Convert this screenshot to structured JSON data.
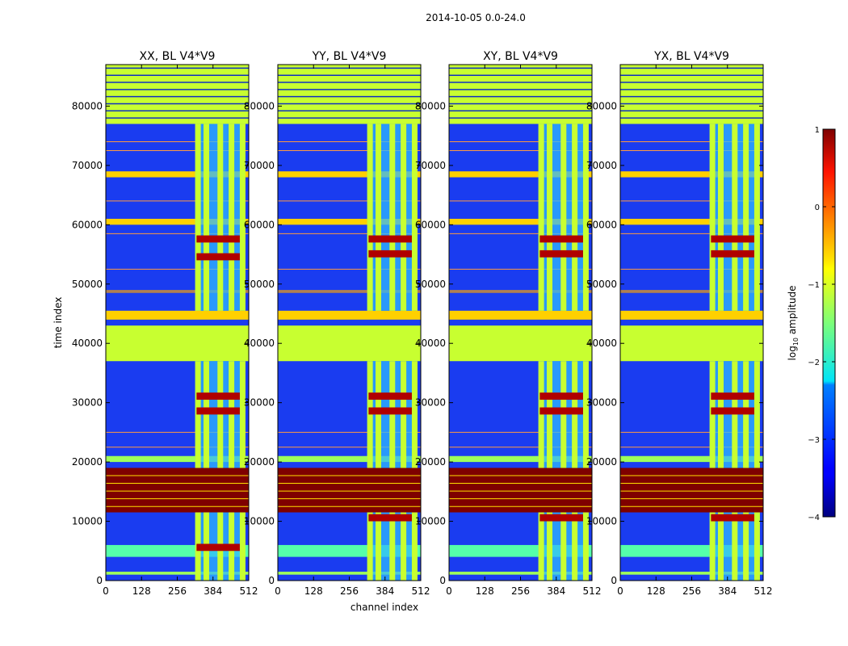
{
  "figure": {
    "suptitle": "2014-10-05 0.0-24.0"
  },
  "chart_data": [
    {
      "type": "heatmap",
      "title": "XX, BL V4*V9",
      "xlabel": "",
      "ylabel": "time index",
      "xlim": [
        0,
        512
      ],
      "ylim": [
        0,
        87000
      ],
      "xticks": [
        "0",
        "128",
        "256",
        "384",
        "512"
      ],
      "yticks": [
        "0",
        "10000",
        "20000",
        "30000",
        "40000",
        "50000",
        "60000",
        "70000",
        "80000"
      ],
      "bright_columns": [
        320,
        350,
        400,
        440,
        480
      ],
      "burst_rows": [
        5000,
        28000,
        30500,
        54000,
        57000
      ]
    },
    {
      "type": "heatmap",
      "title": "YY, BL V4*V9",
      "xlabel": "channel index",
      "ylabel": "",
      "xlim": [
        0,
        512
      ],
      "ylim": [
        0,
        87000
      ],
      "xticks": [
        "0",
        "128",
        "256",
        "384",
        "512"
      ],
      "yticks": [
        "0",
        "10000",
        "20000",
        "30000",
        "40000",
        "50000",
        "60000",
        "70000",
        "80000"
      ],
      "bright_columns": [
        320,
        350,
        400,
        440,
        480
      ],
      "burst_rows": [
        10000,
        28000,
        30500,
        54500,
        57000
      ]
    },
    {
      "type": "heatmap",
      "title": "XY, BL V4*V9",
      "xlabel": "",
      "ylabel": "",
      "xlim": [
        0,
        512
      ],
      "ylim": [
        0,
        87000
      ],
      "xticks": [
        "0",
        "128",
        "256",
        "384",
        "512"
      ],
      "yticks": [
        "0",
        "10000",
        "20000",
        "30000",
        "40000",
        "50000",
        "60000",
        "70000",
        "80000"
      ],
      "bright_columns": [
        320,
        350,
        400,
        440,
        480
      ],
      "burst_rows": [
        10000,
        28000,
        30500,
        54500,
        57000
      ]
    },
    {
      "type": "heatmap",
      "title": "YX, BL V4*V9",
      "xlabel": "",
      "ylabel": "",
      "xlim": [
        0,
        512
      ],
      "ylim": [
        0,
        87000
      ],
      "xticks": [
        "0",
        "128",
        "256",
        "384",
        "512"
      ],
      "yticks": [
        "0",
        "10000",
        "20000",
        "30000",
        "40000",
        "50000",
        "60000",
        "70000",
        "80000"
      ],
      "bright_columns": [
        320,
        350,
        400,
        440,
        480
      ],
      "burst_rows": [
        10000,
        28000,
        30500,
        54500,
        57000
      ]
    }
  ],
  "colorbar": {
    "label": "log10 amplitude",
    "range": [
      -4,
      1
    ],
    "ticks": [
      "1",
      "0",
      "−1",
      "−2",
      "−3",
      "−4"
    ],
    "colormap": "jet"
  }
}
